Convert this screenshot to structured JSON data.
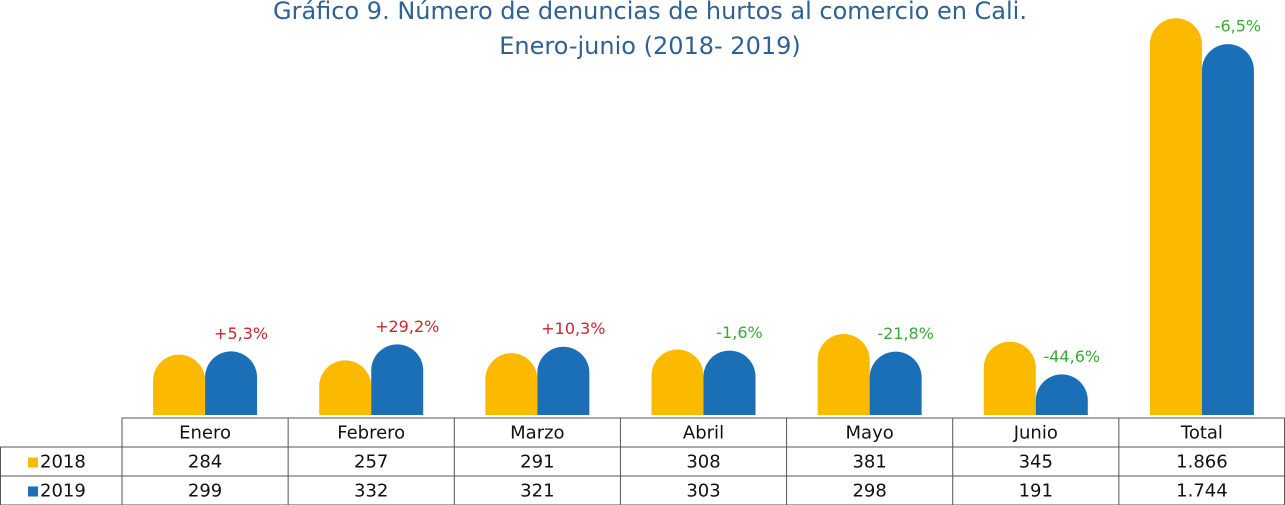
{
  "chart_data": {
    "type": "bar",
    "title": "Gráfico 9. Número de denuncias de hurtos al comercio en Cali.",
    "subtitle": "Enero-junio (2018- 2019)",
    "categories": [
      "Enero",
      "Febrero",
      "Marzo",
      "Abril",
      "Mayo",
      "Junio",
      "Total"
    ],
    "series": [
      {
        "name": "2018",
        "color": "#fbb900",
        "values": [
          284,
          257,
          291,
          308,
          381,
          345,
          1866
        ],
        "value_labels": [
          "284",
          "257",
          "291",
          "308",
          "381",
          "345",
          "1.866"
        ]
      },
      {
        "name": "2019",
        "color": "#1a6fb7",
        "values": [
          299,
          332,
          321,
          303,
          298,
          191,
          1744
        ],
        "value_labels": [
          "299",
          "332",
          "321",
          "303",
          "298",
          "191",
          "1.744"
        ]
      }
    ],
    "annotations": [
      "+5,3%",
      "+29,2%",
      "+10,3%",
      "-1,6%",
      "-21,8%",
      "-44,6%",
      "-6,5%"
    ],
    "annotation_colors": [
      "#c8262c",
      "#c8262c",
      "#c8262c",
      "#3aaa35",
      "#3aaa35",
      "#3aaa35",
      "#3aaa35"
    ],
    "ylim": [
      0,
      1900
    ],
    "data_table": true
  }
}
